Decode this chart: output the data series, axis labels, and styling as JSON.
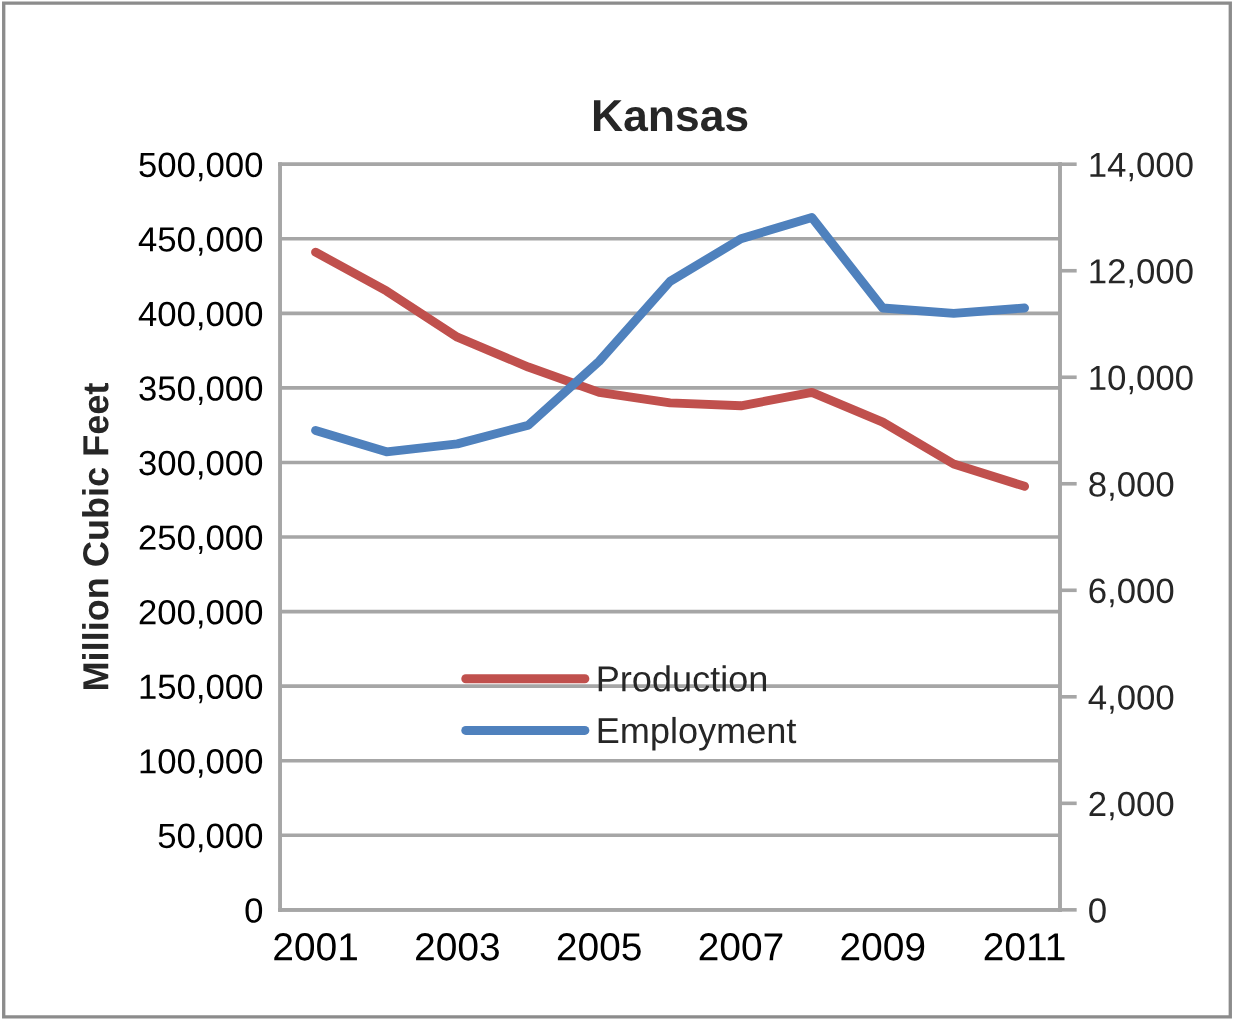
{
  "chart_data": {
    "type": "line",
    "title": "Kansas",
    "ylabel": "Million Cubic Feet",
    "x": [
      2001,
      2002,
      2003,
      2004,
      2005,
      2006,
      2007,
      2008,
      2009,
      2010,
      2011
    ],
    "xlim": [
      2000.5,
      2011.5
    ],
    "xticks": [
      2001,
      2003,
      2005,
      2007,
      2009,
      2011
    ],
    "ylim": [
      0,
      500000
    ],
    "yticks": [
      0,
      {
        "value": 50000,
        "label": "50,000"
      },
      {
        "value": 100000,
        "label": "100,000"
      },
      {
        "value": 150000,
        "label": "150,000"
      },
      {
        "value": 200000,
        "label": "200,000"
      },
      {
        "value": 250000,
        "label": "250,000"
      },
      {
        "value": 300000,
        "label": "300,000"
      },
      {
        "value": 350000,
        "label": "350,000"
      },
      {
        "value": 400000,
        "label": "400,000"
      },
      {
        "value": 450000,
        "label": "450,000"
      },
      {
        "value": 500000,
        "label": "500,000"
      }
    ],
    "y2lim": [
      0,
      14000
    ],
    "y2ticks": [
      0,
      {
        "value": 2000,
        "label": "2,000"
      },
      {
        "value": 4000,
        "label": "4,000"
      },
      {
        "value": 6000,
        "label": "6,000"
      },
      {
        "value": 8000,
        "label": "8,000"
      },
      {
        "value": 10000,
        "label": "10,000"
      },
      {
        "value": 12000,
        "label": "12,000"
      },
      {
        "value": 14000,
        "label": "14,000"
      }
    ],
    "grid": "y",
    "legend": "bottom",
    "series": [
      {
        "name": "Production",
        "color": "#c0504d",
        "values": [
          441000,
          415000,
          384000,
          364000,
          347000,
          340000,
          338000,
          347000,
          327000,
          299000,
          284000
        ]
      },
      {
        "name": "Employment",
        "color": "#4f81bd",
        "axis": "y2",
        "values": [
          9000,
          8600,
          8750,
          9100,
          10300,
          11800,
          12600,
          13000,
          11300,
          11200,
          11300
        ]
      }
    ]
  }
}
